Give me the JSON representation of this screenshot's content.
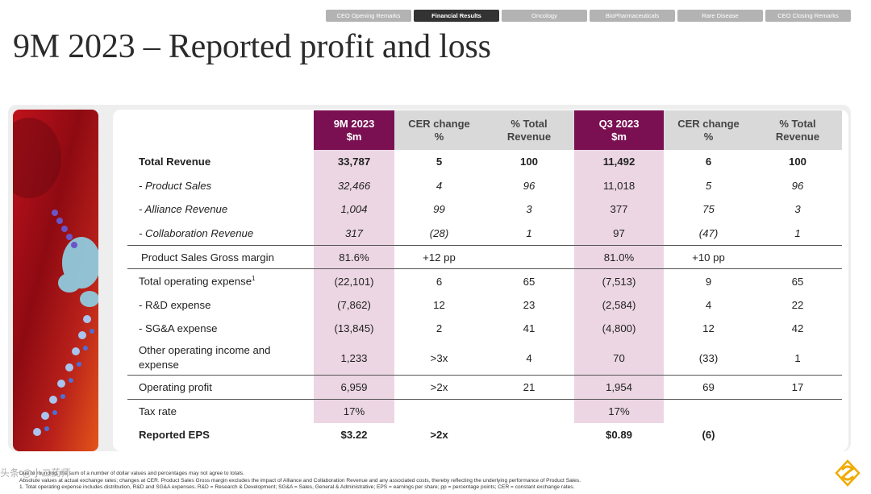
{
  "nav": {
    "tabs": [
      {
        "label": "CEO Opening Remarks",
        "active": false
      },
      {
        "label": "Financial Results",
        "active": true
      },
      {
        "label": "Oncology",
        "active": false
      },
      {
        "label": "BioPharmaceuticals",
        "active": false
      },
      {
        "label": "Rare Disease",
        "active": false
      },
      {
        "label": "CEO Closing Remarks",
        "active": false
      }
    ]
  },
  "title": "9M 2023 – Reported profit and loss",
  "table": {
    "headers": {
      "h1a": "9M 2023",
      "h1b": "$m",
      "h2a": "CER change",
      "h2b": "%",
      "h3a": "% Total",
      "h3b": "Revenue",
      "h4a": "Q3 2023",
      "h4b": "$m",
      "h5a": "CER change",
      "h5b": "%",
      "h6a": "% Total",
      "h6b": "Revenue"
    },
    "rows": [
      {
        "label": "Total Revenue",
        "v": [
          "33,787",
          "5",
          "100",
          "11,492",
          "6",
          "100"
        ]
      },
      {
        "label": "- Product Sales",
        "v": [
          "32,466",
          "4",
          "96",
          "11,018",
          "5",
          "96"
        ]
      },
      {
        "label": "- Alliance Revenue",
        "v": [
          "1,004",
          "99",
          "3",
          "377",
          "75",
          "3"
        ]
      },
      {
        "label": "- Collaboration Revenue",
        "v": [
          "317",
          "(28)",
          "1",
          "97",
          "(47)",
          "1"
        ]
      },
      {
        "label": "Product Sales Gross margin",
        "v": [
          "81.6%",
          "+12 pp",
          "",
          "81.0%",
          "+10 pp",
          ""
        ]
      },
      {
        "label": "Total operating expense",
        "sup": "1",
        "v": [
          "(22,101)",
          "6",
          "65",
          "(7,513)",
          "9",
          "65"
        ]
      },
      {
        "label": "- R&D expense",
        "v": [
          "(7,862)",
          "12",
          "23",
          "(2,584)",
          "4",
          "22"
        ]
      },
      {
        "label": "- SG&A expense",
        "v": [
          "(13,845)",
          "2",
          "41",
          "(4,800)",
          "12",
          "42"
        ]
      },
      {
        "label": "Other operating income and expense",
        "v": [
          "1,233",
          ">3x",
          "4",
          "70",
          "(33)",
          "1"
        ]
      },
      {
        "label": "Operating profit",
        "v": [
          "6,959",
          ">2x",
          "21",
          "1,954",
          "69",
          "17"
        ]
      },
      {
        "label": "Tax rate",
        "v": [
          "17%",
          "",
          "",
          "17%",
          "",
          ""
        ]
      },
      {
        "label": "Reported EPS",
        "v": [
          "$3.22",
          ">2x",
          "",
          "$0.89",
          "(6)",
          ""
        ]
      }
    ]
  },
  "footnotes": {
    "line1": "Due to rounding, the sum of a number of dollar values and percentages may not agree to totals.",
    "line2": "Absolute values at actual exchange rates; changes at CER. Product Sales Gross margin excludes the impact of Alliance and Collaboration Revenue and any associated costs, thereby reflecting the underlying performance of Product Sales.",
    "line3": "1. Total operating expense includes distribution, R&D and SG&A expenses. R&D = Research & Development; SG&A = Sales, General & Administrative; EPS = earnings per share; pp = percentage points; CER = constant exchange rates."
  },
  "watermark": "头条 @小二药师",
  "colors": {
    "maroon": "#7a1052",
    "highlight": "#ecd6e3",
    "header_grey": "#d9d9d9",
    "logo": "#f0ab00"
  }
}
